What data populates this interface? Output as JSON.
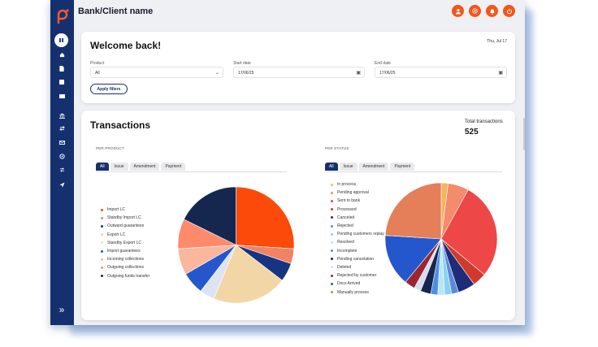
{
  "app": {
    "bank_name": "Bank/Client name"
  },
  "welcome": {
    "title": "Welcome back!",
    "date": "Thu, Jul 17",
    "filters": {
      "product_label": "Product",
      "product_value": "All",
      "start_label": "Start date",
      "start_value": "17/06/25",
      "end_label": "End date",
      "end_value": "17/06/25",
      "apply_label": "Apply filters"
    }
  },
  "transactions": {
    "title": "Transactions",
    "total_label": "Total transactions",
    "total_value": "525",
    "per_product": {
      "label": "PER PRODUCT",
      "tabs": [
        "All",
        "Issue",
        "Amendment",
        "Payment"
      ]
    },
    "per_status": {
      "label": "PER STATUS",
      "tabs": [
        "All",
        "Issue",
        "Amendment",
        "Payment"
      ]
    }
  },
  "chart_data": [
    {
      "type": "pie",
      "series": [
        {
          "label": "Import LC",
          "value": 25,
          "color": "#fb4a0a"
        },
        {
          "label": "Standby Import LC",
          "value": 4,
          "color": "#f18363"
        },
        {
          "label": "Outward guarantees",
          "value": 5,
          "color": "#173480"
        },
        {
          "label": "Export LC",
          "value": 20,
          "color": "#f3d6a6"
        },
        {
          "label": "Standby Export LC",
          "value": 4,
          "color": "#dde3f3"
        },
        {
          "label": "Import guarantees",
          "value": 6,
          "color": "#2457cc"
        },
        {
          "label": "Incoming collections",
          "value": 7,
          "color": "#fbb69e"
        },
        {
          "label": "Outgoing collections",
          "value": 8,
          "color": "#fd8a6b"
        },
        {
          "label": "Outgoing funds transfer",
          "value": 17,
          "color": "#16274f"
        }
      ]
    },
    {
      "type": "pie",
      "series": [
        {
          "label": "In process",
          "value": 2,
          "color": "#f6b45e"
        },
        {
          "label": "Pending approval",
          "value": 6,
          "color": "#f48b6b"
        },
        {
          "label": "Sent to bank",
          "value": 28,
          "color": "#ee4747"
        },
        {
          "label": "Processed",
          "value": 4,
          "color": "#cf3a2a"
        },
        {
          "label": "Canceled",
          "value": 5,
          "color": "#1f2c7a"
        },
        {
          "label": "Rejected",
          "value": 2,
          "color": "#5b8ad9"
        },
        {
          "label": "Pending customers replay",
          "value": 2,
          "color": "#8bd1f3"
        },
        {
          "label": "Resolved",
          "value": 2,
          "color": "#b8e6f8"
        },
        {
          "label": "Incomplete",
          "value": 2,
          "color": "#4f8ee7"
        },
        {
          "label": "Pending cancelation",
          "value": 3,
          "color": "#16274f"
        },
        {
          "label": "Deleted",
          "value": 2,
          "color": "#d7ddf0"
        },
        {
          "label": "Rejected by customer",
          "value": 3,
          "color": "#9c2630"
        },
        {
          "label": "Docs Arrived",
          "value": 15,
          "color": "#2457cc"
        },
        {
          "label": "Manually process",
          "value": 24,
          "color": "#e47f59"
        }
      ]
    }
  ]
}
